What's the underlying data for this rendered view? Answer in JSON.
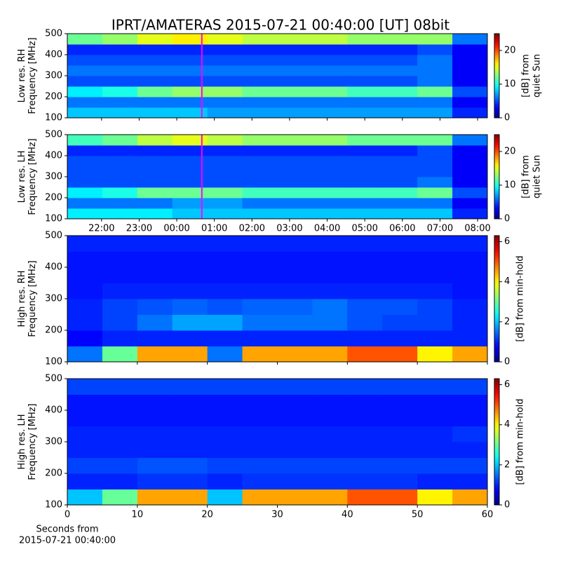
{
  "title": "IPRT/AMATERAS 2015-07-21 00:40:00 [UT]   08bit",
  "chart_data": [
    {
      "type": "heatmap",
      "ylabel": [
        "Low res. RH",
        "Frequency [MHz]"
      ],
      "colorbar_label": [
        "[dB] from",
        "quiet Sun"
      ],
      "colormap": "jet",
      "clim": [
        0,
        25
      ],
      "cticks": [
        0,
        10,
        20
      ],
      "xlim": [
        21.09,
        32.26
      ],
      "xticks": [
        22,
        23,
        24,
        25,
        26,
        27,
        28,
        29,
        30,
        31,
        32
      ],
      "xticklabels": false,
      "ylim": [
        100,
        500
      ],
      "yticks": [
        100,
        200,
        300,
        400,
        500
      ],
      "marker_x": 24.667,
      "marker_color": "#ff00ff",
      "ybins": [
        100,
        150,
        200,
        250,
        300,
        350,
        400,
        450,
        500
      ],
      "values": [
        [
          8,
          8,
          8,
          8,
          7,
          7,
          7,
          7,
          7,
          7,
          7,
          4
        ],
        [
          6,
          6,
          6,
          6,
          6,
          6,
          6,
          6,
          6,
          6,
          6,
          3
        ],
        [
          9,
          10,
          12,
          13,
          13,
          12,
          12,
          12,
          11,
          11,
          12,
          5
        ],
        [
          5,
          5,
          5,
          5,
          5,
          5,
          5,
          5,
          5,
          5,
          6,
          3
        ],
        [
          6,
          6,
          6,
          6,
          6,
          6,
          6,
          6,
          6,
          6,
          6,
          3
        ],
        [
          5,
          5,
          5,
          5,
          5,
          5,
          5,
          5,
          5,
          5,
          6,
          3
        ],
        [
          4,
          4,
          4,
          4,
          4,
          4,
          4,
          4,
          4,
          4,
          5,
          3
        ],
        [
          12,
          13,
          15,
          16,
          15,
          14,
          14,
          14,
          13,
          13,
          13,
          6
        ]
      ]
    },
    {
      "type": "heatmap",
      "ylabel": [
        "Low res. LH",
        "Frequency [MHz]"
      ],
      "colorbar_label": [
        "[dB] from",
        "quiet Sun"
      ],
      "colormap": "jet",
      "clim": [
        0,
        25
      ],
      "cticks": [
        0,
        10,
        20
      ],
      "xlim": [
        21.09,
        32.26
      ],
      "xticks": [
        {
          "value": 22,
          "label": "22:00"
        },
        {
          "value": 23,
          "label": "23:00"
        },
        {
          "value": 24,
          "label": "00:00"
        },
        {
          "value": 25,
          "label": "01:00"
        },
        {
          "value": 26,
          "label": "02:00"
        },
        {
          "value": 27,
          "label": "03:00"
        },
        {
          "value": 28,
          "label": "04:00"
        },
        {
          "value": 29,
          "label": "05:00"
        },
        {
          "value": 30,
          "label": "06:00"
        },
        {
          "value": 31,
          "label": "07:00"
        },
        {
          "value": 32,
          "label": "08:00"
        }
      ],
      "ylim": [
        100,
        500
      ],
      "yticks": [
        100,
        200,
        300,
        400,
        500
      ],
      "marker_x": 24.667,
      "marker_color": "#ff00ff",
      "ybins": [
        100,
        150,
        200,
        250,
        300,
        350,
        400,
        450,
        500
      ],
      "values": [
        [
          9,
          9,
          9,
          8,
          8,
          8,
          8,
          8,
          8,
          8,
          8,
          4
        ],
        [
          6,
          6,
          6,
          7,
          7,
          6,
          6,
          6,
          6,
          6,
          6,
          3
        ],
        [
          9,
          10,
          12,
          12,
          12,
          11,
          11,
          11,
          11,
          11,
          12,
          5
        ],
        [
          5,
          5,
          5,
          5,
          5,
          5,
          5,
          5,
          5,
          5,
          6,
          3
        ],
        [
          5,
          5,
          5,
          5,
          5,
          5,
          5,
          5,
          5,
          5,
          5,
          3
        ],
        [
          5,
          5,
          5,
          5,
          5,
          5,
          5,
          5,
          5,
          5,
          5,
          3
        ],
        [
          4,
          4,
          4,
          4,
          4,
          4,
          4,
          4,
          4,
          4,
          5,
          3
        ],
        [
          11,
          12,
          14,
          15,
          14,
          13,
          13,
          13,
          12,
          12,
          12,
          6
        ]
      ]
    },
    {
      "type": "heatmap",
      "ylabel": [
        "High res. RH",
        "Frequency [MHz]"
      ],
      "colorbar_label": [
        "[dB] from min-hold"
      ],
      "colormap": "jet",
      "clim": [
        0,
        6.3
      ],
      "cticks": [
        0,
        2,
        4,
        6
      ],
      "xlim": [
        0,
        60
      ],
      "xticks": [
        0,
        10,
        20,
        30,
        40,
        50,
        60
      ],
      "xticklabels": false,
      "ylim": [
        100,
        500
      ],
      "yticks": [
        100,
        200,
        300,
        400,
        500
      ],
      "ybins": [
        100,
        150,
        200,
        250,
        300,
        350,
        400,
        450,
        500
      ],
      "values": [
        [
          1.5,
          3,
          4.5,
          4.5,
          1.5,
          4.5,
          4.5,
          4.5,
          5,
          5,
          4,
          4.5
        ],
        [
          0.8,
          1,
          1,
          1,
          1,
          1,
          1,
          1,
          1,
          1,
          1,
          1
        ],
        [
          1,
          1.2,
          1.5,
          1.8,
          1.8,
          1.5,
          1.5,
          1.5,
          1.3,
          1.2,
          1.2,
          1
        ],
        [
          1,
          1.2,
          1.3,
          1.4,
          1.3,
          1.4,
          1.4,
          1.5,
          1.3,
          1.3,
          1.2,
          1
        ],
        [
          0.9,
          1,
          1,
          1,
          1,
          1,
          1,
          1,
          1,
          1,
          1,
          0.9
        ],
        [
          0.9,
          0.9,
          0.9,
          0.9,
          0.9,
          0.9,
          0.9,
          0.9,
          0.9,
          0.9,
          0.9,
          0.9
        ],
        [
          0.9,
          0.9,
          0.9,
          0.9,
          0.9,
          0.9,
          0.9,
          0.9,
          0.9,
          0.9,
          0.9,
          0.9
        ],
        [
          1,
          1,
          1,
          1,
          1,
          1,
          1,
          1,
          1,
          1,
          1,
          1
        ]
      ]
    },
    {
      "type": "heatmap",
      "ylabel": [
        "High res. LH",
        "Frequency [MHz]"
      ],
      "colorbar_label": [
        "[dB] from min-hold"
      ],
      "colormap": "jet",
      "clim": [
        0,
        6.3
      ],
      "cticks": [
        0,
        2,
        4,
        6
      ],
      "xlim": [
        0,
        60
      ],
      "xticks": [
        0,
        10,
        20,
        30,
        40,
        50,
        60
      ],
      "xlabel": [
        "Seconds from",
        "2015-07-21 00:40:00"
      ],
      "ylim": [
        100,
        500
      ],
      "yticks": [
        100,
        200,
        300,
        400,
        500
      ],
      "ybins": [
        100,
        150,
        200,
        250,
        300,
        350,
        400,
        450,
        500
      ],
      "values": [
        [
          2,
          3,
          4.5,
          4.5,
          2,
          4.5,
          4.5,
          4.5,
          5,
          5,
          4,
          4.5
        ],
        [
          1,
          1,
          1.1,
          1.1,
          1,
          1.1,
          1.1,
          1.1,
          1.1,
          1.1,
          1,
          1
        ],
        [
          1.2,
          1.2,
          1.3,
          1.3,
          1.2,
          1.2,
          1.2,
          1.2,
          1.2,
          1.2,
          1.2,
          1.2
        ],
        [
          1,
          1,
          1,
          1,
          1,
          1,
          1,
          1,
          1,
          1,
          1,
          1
        ],
        [
          1,
          1,
          1,
          1,
          1,
          1,
          1,
          1,
          1,
          1,
          1,
          1.1
        ],
        [
          0.9,
          0.9,
          0.9,
          0.9,
          0.9,
          0.9,
          0.9,
          0.9,
          0.9,
          0.9,
          0.9,
          0.9
        ],
        [
          0.9,
          0.9,
          0.9,
          0.9,
          0.9,
          0.9,
          0.9,
          0.9,
          0.9,
          0.9,
          0.9,
          0.9
        ],
        [
          1.2,
          1.2,
          1.2,
          1.2,
          1.2,
          1.2,
          1.2,
          1.2,
          1.2,
          1.2,
          1.2,
          1.2
        ]
      ]
    }
  ]
}
